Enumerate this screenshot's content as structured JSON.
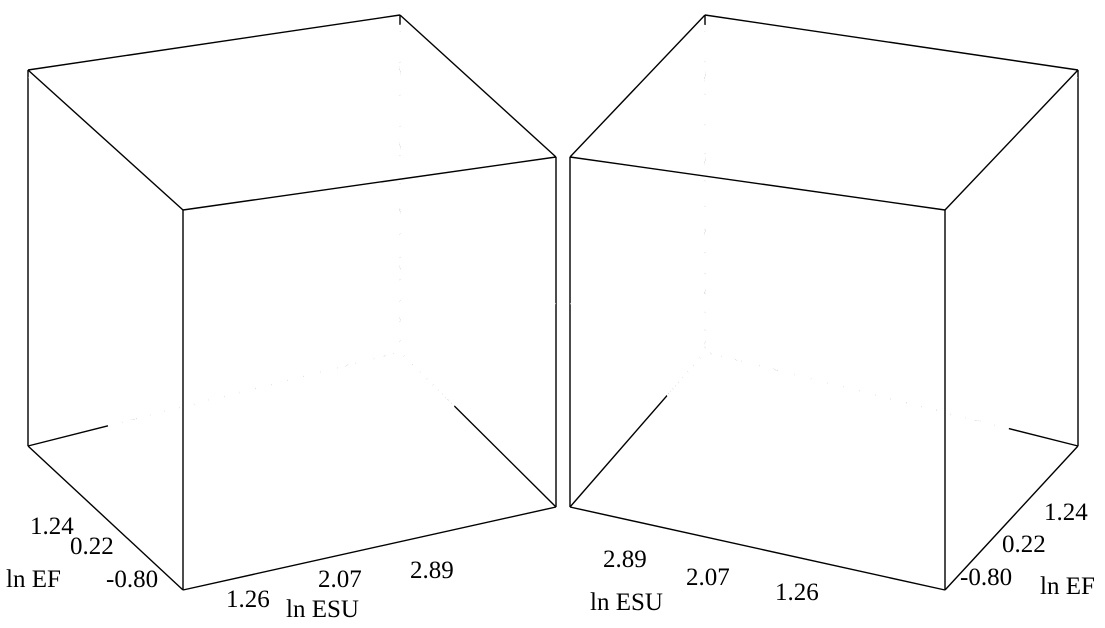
{
  "chart_data": [
    {
      "type": "surface",
      "view": "left",
      "grid": false,
      "colors": {
        "line": "#000000",
        "face": "#ffffff",
        "background": "#ffffff"
      },
      "x_axis": {
        "label": "ln ESU",
        "ticks": [
          "1.26",
          "2.07",
          "2.89"
        ],
        "tick_values": [
          1.26,
          2.07,
          2.89
        ],
        "range": [
          0.85,
          3.3
        ]
      },
      "y_axis": {
        "label": "ln EF",
        "ticks": [
          "1.24",
          "0.22",
          "-0.80"
        ],
        "tick_values": [
          1.24,
          0.22,
          -0.8
        ],
        "range": [
          -1.31,
          1.75
        ]
      },
      "mesh_resolution": 24
    },
    {
      "type": "surface",
      "view": "right",
      "grid": false,
      "colors": {
        "line": "#000000",
        "face": "#ffffff",
        "background": "#ffffff"
      },
      "x_axis": {
        "label": "ln ESU",
        "ticks": [
          "2.89",
          "2.07",
          "1.26"
        ],
        "tick_values": [
          2.89,
          2.07,
          1.26
        ],
        "range": [
          0.85,
          3.3
        ]
      },
      "y_axis": {
        "label": "ln EF",
        "ticks": [
          "1.24",
          "0.22",
          "-0.80"
        ],
        "tick_values": [
          1.24,
          0.22,
          -0.8
        ],
        "range": [
          -1.31,
          1.75
        ]
      },
      "mesh_resolution": 24
    }
  ]
}
